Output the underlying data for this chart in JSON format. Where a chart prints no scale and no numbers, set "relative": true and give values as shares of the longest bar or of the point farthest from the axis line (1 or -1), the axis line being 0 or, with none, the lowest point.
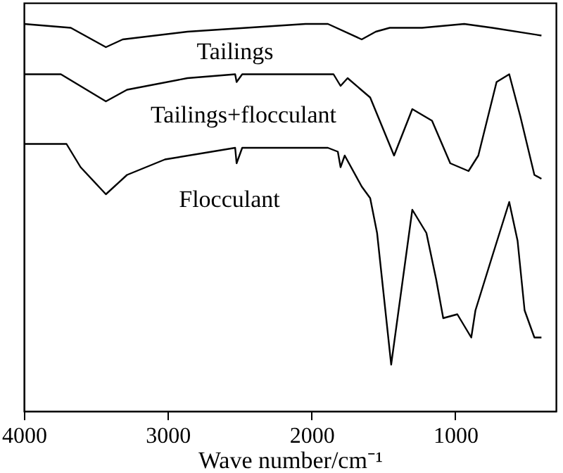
{
  "chart_data": {
    "type": "line",
    "relative": true,
    "xlabel": "Wave number/cm⁻¹",
    "xlim": [
      4000,
      300
    ],
    "xticks": [
      4000,
      3000,
      2000,
      1000
    ],
    "tick_labels": "x",
    "marker": "none",
    "line_style": "solid",
    "series": [
      {
        "name": "Tailings",
        "color": "#000000",
        "x": [
          4000,
          3674,
          3430,
          3313,
          2863,
          2042,
          1886,
          1651,
          1553,
          1456,
          1231,
          938,
          743,
          401
        ],
        "values": [
          1.0,
          0.99,
          0.94,
          0.96,
          0.98,
          1.0,
          1.0,
          0.96,
          0.98,
          0.99,
          0.99,
          1.0,
          0.99,
          0.97
        ]
      },
      {
        "name": "Tailings+flocculant",
        "color": "#000000",
        "x": [
          4000,
          3743,
          3430,
          3283,
          2863,
          2531,
          2521,
          2482,
          1847,
          1798,
          1749,
          1592,
          1426,
          1299,
          1162,
          1035,
          908,
          840,
          713,
          625,
          547,
          450,
          401
        ],
        "values": [
          0.87,
          0.87,
          0.8,
          0.83,
          0.86,
          0.87,
          0.85,
          0.87,
          0.87,
          0.84,
          0.86,
          0.81,
          0.66,
          0.78,
          0.75,
          0.64,
          0.62,
          0.66,
          0.85,
          0.87,
          0.76,
          0.61,
          0.6
        ]
      },
      {
        "name": "Flocculant",
        "color": "#000000",
        "x": [
          4000,
          3704,
          3606,
          3430,
          3283,
          3019,
          2531,
          2521,
          2482,
          1886,
          1817,
          1798,
          1769,
          1651,
          1592,
          1544,
          1446,
          1299,
          1201,
          1133,
          1084,
          986,
          889,
          860,
          743,
          625,
          567,
          518,
          450,
          401
        ],
        "values": [
          0.69,
          0.69,
          0.63,
          0.56,
          0.61,
          0.65,
          0.68,
          0.64,
          0.68,
          0.68,
          0.67,
          0.63,
          0.66,
          0.58,
          0.55,
          0.46,
          0.12,
          0.52,
          0.46,
          0.34,
          0.24,
          0.25,
          0.19,
          0.26,
          0.4,
          0.54,
          0.44,
          0.26,
          0.19,
          0.19
        ]
      }
    ]
  }
}
